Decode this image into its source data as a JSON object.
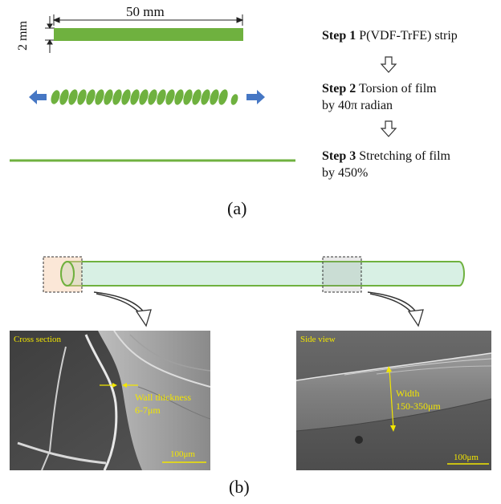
{
  "panel_a": {
    "length_label": "50 mm",
    "width_label": "2 mm",
    "steps": [
      {
        "bold": "Step 1",
        "line1": "P(VDF-TrFE) strip",
        "line2": ""
      },
      {
        "bold": "Step 2",
        "line1": "Torsion of film",
        "line2": "by 40π radian"
      },
      {
        "bold": "Step 3",
        "line1": "Stretching of film",
        "line2": "by 450%"
      }
    ],
    "caption": "(a)"
  },
  "panel_b": {
    "left_image": {
      "title": "Cross section",
      "annotation_line1": "Wall thickness",
      "annotation_line2": "6-7μm",
      "scale_bar": "100μm"
    },
    "right_image": {
      "title": "Side view",
      "annotation_line1": "Width",
      "annotation_line2": "150-350μm",
      "scale_bar": "100μm"
    },
    "caption": "(b)"
  },
  "colors": {
    "strip_green": "#6fb13f",
    "arrow_blue": "#4677c4",
    "tube_fill": "#d8f0e4",
    "tube_stroke": "#6fb13f",
    "annotation_yellow": "#f2e600"
  }
}
